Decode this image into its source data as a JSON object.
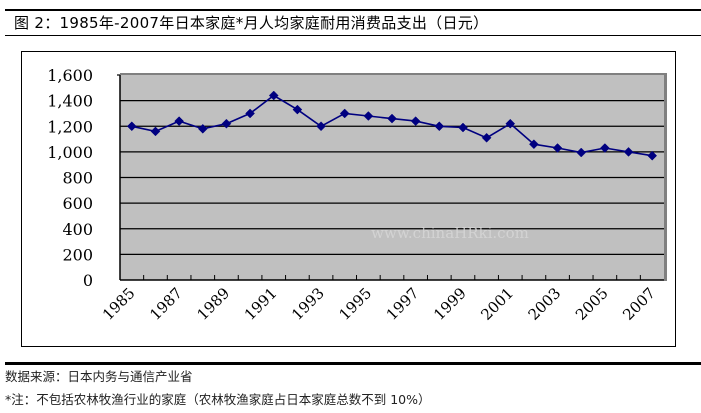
{
  "header": {
    "title": "图 2：1985年-2007年日本家庭*月人均家庭耐用消费品支出（日元）"
  },
  "footer": {
    "source": "数据来源：日本内务与通信产业省",
    "note": "*注：不包括农林牧渔行业的家庭（农林牧渔家庭占日本家庭总数不到 10%）"
  },
  "colors": {
    "plot_background": "#c0c0c0",
    "series_line": "#000080",
    "gridline": "#000000",
    "plot_shadow": "#808080"
  },
  "chart_data": {
    "type": "line",
    "title": "1985年-2007年日本家庭*月人均家庭耐用消费品支出（日元）",
    "xlabel": "",
    "ylabel": "",
    "ylim": [
      0,
      1600
    ],
    "yticks": [
      0,
      200,
      400,
      600,
      800,
      1000,
      1200,
      1400,
      1600
    ],
    "ytick_labels": [
      "0",
      "200",
      "400",
      "600",
      "800",
      "1,000",
      "1,200",
      "1,400",
      "1,600"
    ],
    "xtick_labels": [
      "1985",
      "1987",
      "1989",
      "1991",
      "1993",
      "1995",
      "1997",
      "1999",
      "2001",
      "2003",
      "2005",
      "2007"
    ],
    "grid": true,
    "legend": "none",
    "x": [
      1985,
      1986,
      1987,
      1988,
      1989,
      1990,
      1991,
      1992,
      1993,
      1994,
      1995,
      1996,
      1997,
      1998,
      1999,
      2000,
      2001,
      2002,
      2003,
      2004,
      2005,
      2006,
      2007
    ],
    "series": [
      {
        "name": "月人均家庭耐用消费品支出（日元）",
        "marker": "diamond",
        "values": [
          1200,
          1160,
          1240,
          1180,
          1220,
          1300,
          1440,
          1330,
          1200,
          1300,
          1280,
          1260,
          1240,
          1200,
          1190,
          1110,
          1220,
          1060,
          1030,
          995,
          1030,
          1000,
          970
        ]
      }
    ],
    "watermark": "www.chinaHRki.com"
  }
}
